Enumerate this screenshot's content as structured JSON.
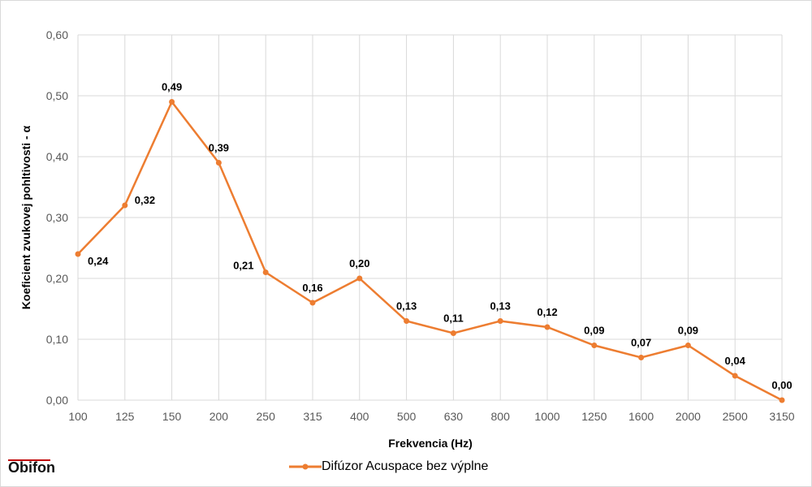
{
  "brand": {
    "logo": "Obifon"
  },
  "chart_data": {
    "type": "line",
    "title": "",
    "xlabel": "Frekvencia (Hz)",
    "ylabel": "Koeficient zvukovej pohltivosti - α",
    "categories": [
      "100",
      "125",
      "150",
      "200",
      "250",
      "315",
      "400",
      "500",
      "630",
      "800",
      "1000",
      "1250",
      "1600",
      "2000",
      "2500",
      "3150"
    ],
    "series": [
      {
        "name": "Difúzor Acuspace bez výplne",
        "color": "#ed7d31",
        "values": [
          0.24,
          0.32,
          0.49,
          0.39,
          0.21,
          0.16,
          0.2,
          0.13,
          0.11,
          0.13,
          0.12,
          0.09,
          0.07,
          0.09,
          0.04,
          0.0
        ],
        "labels": [
          "0,24",
          "0,32",
          "0,49",
          "0,39",
          "0,21",
          "0,16",
          "0,20",
          "0,13",
          "0,11",
          "0,13",
          "0,12",
          "0,09",
          "0,07",
          "0,09",
          "0,04",
          "0,00"
        ]
      }
    ],
    "ylim": [
      0,
      0.6
    ],
    "yticks": [
      "0,00",
      "0,10",
      "0,20",
      "0,30",
      "0,40",
      "0,50",
      "0,60"
    ],
    "grid": true,
    "legend": "bottom"
  }
}
